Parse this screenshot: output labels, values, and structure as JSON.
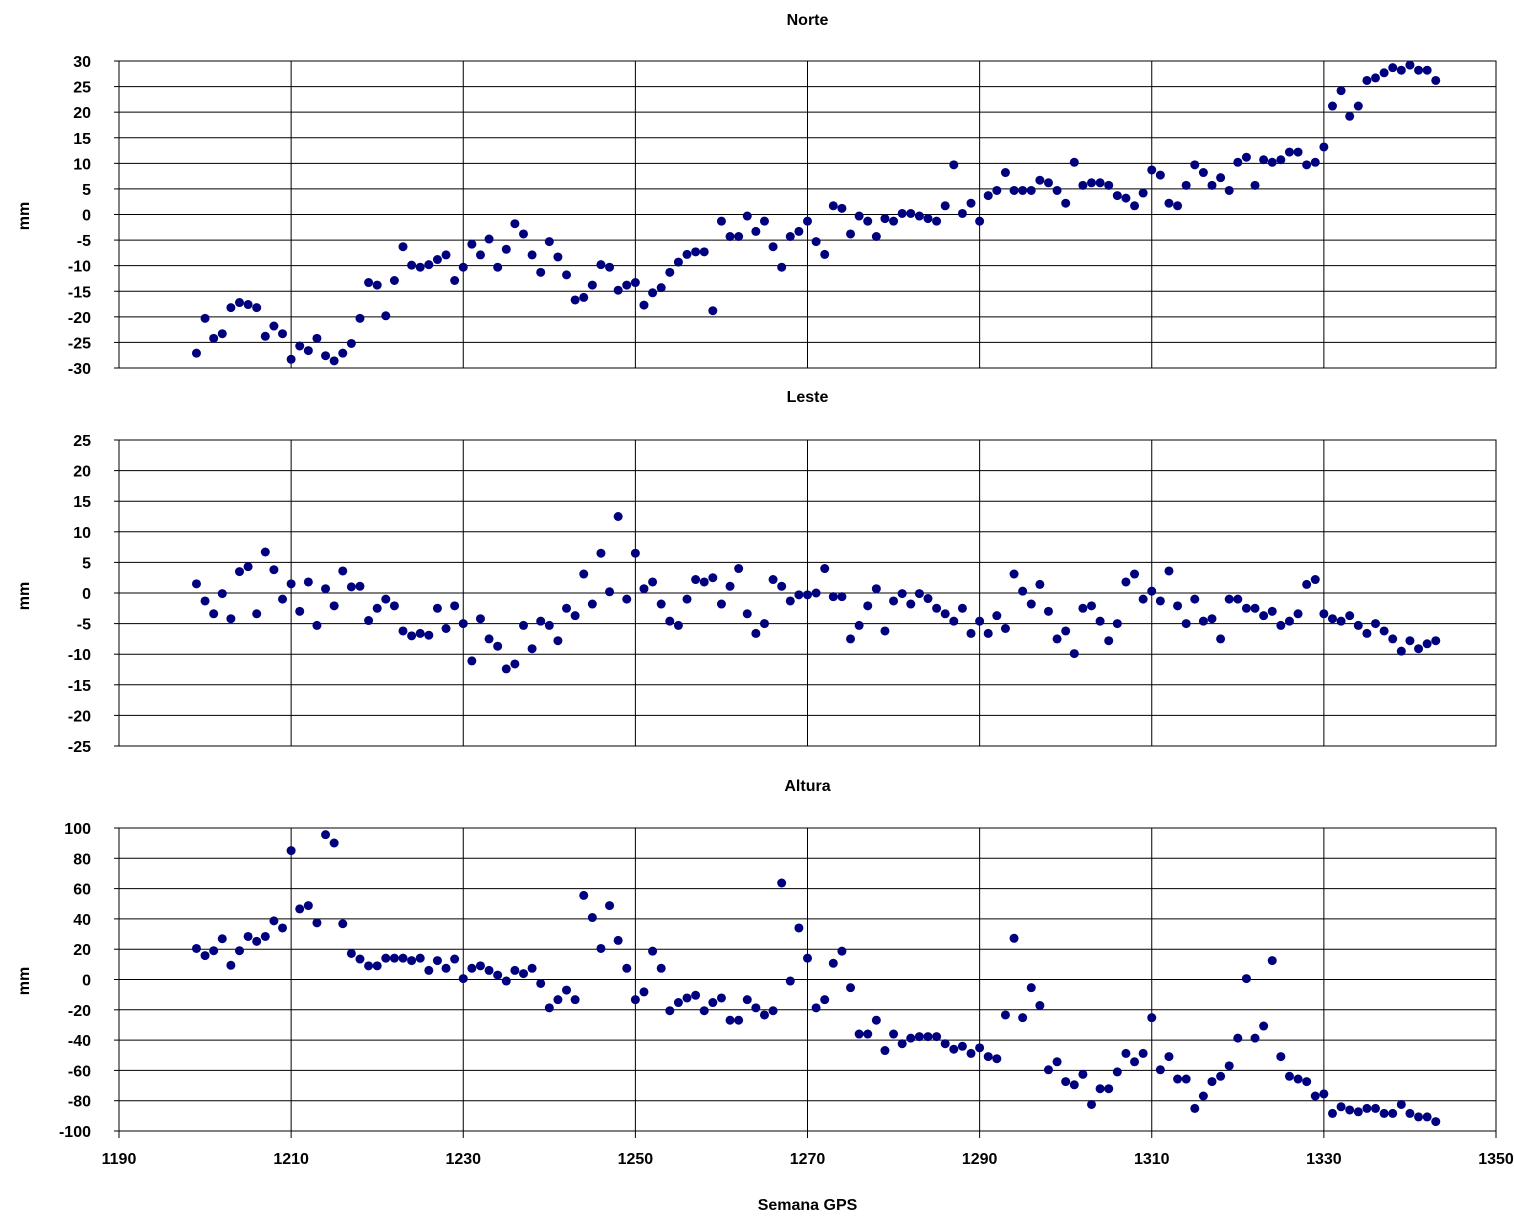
{
  "chart_data": [
    {
      "type": "scatter",
      "title": "Norte",
      "xlabel": "",
      "ylabel": "mm",
      "xlim": [
        1190,
        1350
      ],
      "ylim": [
        -30,
        30
      ],
      "y_ticks": [
        30,
        25,
        20,
        15,
        10,
        5,
        0,
        -5,
        -10,
        -15,
        -20,
        -25,
        -30
      ],
      "show_x_tick_labels": false,
      "grid": true,
      "marker_color": "#00007f",
      "series": [
        {
          "x_start": 1199,
          "values": [
            -27.1,
            -20.3,
            -24.2,
            -23.3,
            -18.2,
            -17.2,
            -17.6,
            -18.2,
            -23.8,
            -21.8,
            -23.3,
            -28.3,
            -25.7,
            -26.6,
            -24.2,
            -27.6,
            -28.6,
            -27.1,
            -25.2,
            -20.3,
            -13.3,
            -13.8,
            -19.8,
            -12.9,
            -6.3,
            -9.9,
            -10.3,
            -9.8,
            -8.8,
            -7.9,
            -12.9,
            -10.3,
            -5.8,
            -7.9,
            -4.8,
            -10.3,
            -6.8,
            -1.8,
            -3.8,
            -7.9,
            -11.3,
            -5.3,
            -8.3,
            -11.8,
            -16.7,
            -16.2,
            -13.8,
            -9.8,
            -10.3,
            -14.8,
            -13.8,
            -13.3,
            -17.7,
            -15.3,
            -14.3,
            -11.3,
            -9.3,
            -7.8,
            -7.3,
            -7.3,
            -18.8,
            -1.3,
            -4.3,
            -4.3,
            -0.3,
            -3.3,
            -1.3,
            -6.3,
            -10.3,
            -4.3,
            -3.3,
            -1.3,
            -5.3,
            -7.8,
            1.7,
            1.2,
            -3.8,
            -0.3,
            -1.3,
            -4.3,
            -0.8,
            -1.3,
            0.2,
            0.2,
            -0.3,
            -0.8,
            -1.3,
            1.7,
            9.7,
            0.2,
            2.2,
            -1.3,
            3.7,
            4.7,
            8.2,
            4.7,
            4.7,
            4.7,
            6.7,
            6.2,
            4.7,
            2.2,
            10.2,
            5.7,
            6.2,
            6.2,
            5.7,
            3.7,
            3.2,
            1.7,
            4.2,
            8.7,
            7.7,
            2.2,
            1.7,
            5.7,
            9.7,
            8.2,
            5.7,
            7.2,
            4.7,
            10.2,
            11.2,
            5.7,
            10.7,
            10.2,
            10.7,
            12.2,
            12.2,
            9.7,
            10.2,
            13.2,
            21.2,
            24.2,
            19.2,
            21.2,
            26.2,
            26.7,
            27.7,
            28.7,
            28.2,
            29.2,
            28.2,
            28.2,
            26.2
          ]
        }
      ]
    },
    {
      "type": "scatter",
      "title": "Leste",
      "xlabel": "",
      "ylabel": "mm",
      "xlim": [
        1190,
        1350
      ],
      "ylim": [
        -25,
        25
      ],
      "y_ticks": [
        25,
        20,
        15,
        10,
        5,
        0,
        -5,
        -10,
        -15,
        -20,
        -25
      ],
      "show_x_tick_labels": false,
      "grid": true,
      "marker_color": "#00007f",
      "series": [
        {
          "x_start": 1199,
          "values": [
            1.5,
            -1.3,
            -3.4,
            -0.1,
            -4.2,
            3.5,
            4.3,
            -3.4,
            6.7,
            3.8,
            -1.0,
            1.5,
            -3.0,
            1.8,
            -5.3,
            0.7,
            -2.1,
            3.6,
            1.0,
            1.1,
            -4.5,
            -2.5,
            -1.0,
            -2.1,
            -6.2,
            -7.0,
            -6.6,
            -6.9,
            -2.5,
            -5.8,
            -2.1,
            -5.0,
            -11.1,
            -4.2,
            -7.5,
            -8.7,
            -12.4,
            -11.6,
            -5.3,
            -9.1,
            -4.6,
            -5.3,
            -7.8,
            -2.5,
            -3.7,
            3.1,
            -1.8,
            6.5,
            0.2,
            12.5,
            -1.0,
            6.5,
            0.7,
            1.8,
            -1.8,
            -4.6,
            -5.3,
            -1.0,
            2.2,
            1.8,
            2.5,
            -1.8,
            1.1,
            4.0,
            -3.4,
            -6.6,
            -5.0,
            2.2,
            1.1,
            -1.3,
            -0.3,
            -0.3,
            0.0,
            4.0,
            -0.6,
            -0.6,
            -7.5,
            -5.3,
            -2.1,
            0.7,
            -6.2,
            -1.3,
            -0.1,
            -1.8,
            -0.1,
            -0.9,
            -2.5,
            -3.4,
            -4.6,
            -2.5,
            -6.6,
            -4.6,
            -6.6,
            -3.7,
            -5.8,
            3.1,
            0.3,
            -1.8,
            1.4,
            -3.0,
            -7.5,
            -6.2,
            -9.9,
            -2.5,
            -2.1,
            -4.6,
            -7.8,
            -5.0,
            1.8,
            3.1,
            -1.0,
            0.3,
            -1.3,
            3.6,
            -2.1,
            -5.0,
            -1.0,
            -4.6,
            -4.2,
            -7.5,
            -1.0,
            -1.0,
            -2.5,
            -2.5,
            -3.7,
            -3.0,
            -5.3,
            -4.6,
            -3.4,
            1.4,
            2.2,
            -3.4,
            -4.2,
            -4.6,
            -3.7,
            -5.3,
            -6.6,
            -5.0,
            -6.2,
            -7.5,
            -9.5,
            -7.8,
            -9.1,
            -8.3,
            -7.8
          ]
        }
      ]
    },
    {
      "type": "scatter",
      "title": "Altura",
      "xlabel": "Semana GPS",
      "ylabel": "mm",
      "xlim": [
        1190,
        1350
      ],
      "ylim": [
        -100,
        100
      ],
      "y_ticks": [
        100,
        80,
        60,
        40,
        20,
        0,
        -20,
        -40,
        -60,
        -80,
        -100
      ],
      "x_ticks": [
        1190,
        1210,
        1230,
        1250,
        1270,
        1290,
        1310,
        1330,
        1350
      ],
      "show_x_tick_labels": true,
      "grid": true,
      "marker_color": "#00007f",
      "series": [
        {
          "x_start": 1199,
          "values": [
            20.5,
            15.8,
            19.0,
            26.9,
            9.4,
            19.0,
            28.4,
            25.2,
            28.4,
            38.7,
            34.0,
            85.1,
            46.6,
            48.8,
            37.4,
            95.6,
            90.1,
            36.8,
            17.2,
            13.5,
            9.0,
            9.0,
            14.1,
            14.1,
            14.1,
            12.5,
            14.1,
            6.0,
            12.5,
            7.4,
            13.5,
            0.6,
            7.4,
            9.0,
            6.0,
            2.9,
            -1.0,
            6.0,
            3.9,
            7.4,
            -2.6,
            -18.7,
            -13.3,
            -7.0,
            -13.3,
            55.5,
            40.9,
            20.5,
            48.8,
            25.8,
            7.4,
            -13.3,
            -8.2,
            18.7,
            7.4,
            -20.6,
            -15.2,
            -12.2,
            -10.4,
            -20.6,
            -15.2,
            -12.2,
            -26.9,
            -26.9,
            -13.3,
            -18.7,
            -23.4,
            -20.6,
            63.7,
            -1.0,
            34.0,
            14.1,
            -18.7,
            -13.3,
            10.7,
            18.7,
            -5.4,
            -36.0,
            -36.0,
            -26.9,
            -46.9,
            -36.0,
            -42.4,
            -38.7,
            -37.7,
            -37.7,
            -37.7,
            -42.4,
            -46.0,
            -44.1,
            -48.8,
            -45.1,
            -50.9,
            -52.3,
            -23.4,
            27.2,
            -25.2,
            -5.4,
            -17.2,
            -59.6,
            -54.3,
            -67.4,
            -69.5,
            -62.6,
            -82.5,
            -72.1,
            -72.1,
            -61.0,
            -48.8,
            -54.3,
            -48.8,
            -25.2,
            -59.6,
            -50.9,
            -65.7,
            -65.7,
            -85.1,
            -76.9,
            -67.4,
            -63.9,
            -57.0,
            -38.7,
            0.6,
            -38.7,
            -30.7,
            12.5,
            -50.9,
            -63.9,
            -65.7,
            -67.4,
            -76.9,
            -75.5,
            -88.4,
            -84.0,
            -86.1,
            -87.3,
            -85.1,
            -85.1,
            -88.4,
            -88.4,
            -82.5,
            -88.4,
            -90.7,
            -90.7,
            -93.8
          ]
        }
      ]
    }
  ]
}
